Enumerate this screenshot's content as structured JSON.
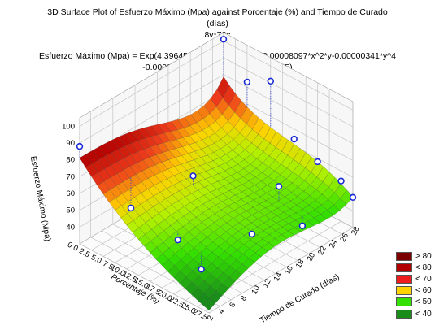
{
  "chart_data": {
    "type": "surface3d",
    "title_line1": "3D Surface Plot of Esfuerzo Máximo (Mpa) against Porcentaje (%) and Tiempo de Curado",
    "title_line2": "(días)",
    "subtitle": "8v*72c",
    "equation_line1": "Esfuerzo Máximo (Mpa) = Exp(4.39645023-0.03867087*x+0.00008097*x^2*y-0.00000341*y^4",
    "equation_line2": "-0.00000007*x^3*y^2+0.00000012*y^5)",
    "xlabel": "Porcentaje (%)",
    "ylabel": "Tiempo de Curado (días)",
    "zlabel": "Esfuerzo Máximo (Mpa)",
    "x_ticks": [
      "0.0",
      "2.5",
      "5.0",
      "7.5",
      "10.0",
      "12.5",
      "15.0",
      "17.5",
      "20.0",
      "22.5",
      "25.0",
      "27.5"
    ],
    "y_ticks": [
      "2",
      "4",
      "6",
      "8",
      "10",
      "12",
      "14",
      "16",
      "18",
      "20",
      "22",
      "24",
      "26",
      "28"
    ],
    "z_ticks": [
      "40",
      "50",
      "60",
      "70",
      "80",
      "90",
      "100"
    ],
    "xlim": [
      0,
      27.5
    ],
    "ylim": [
      2,
      28
    ],
    "zlim": [
      30,
      105
    ],
    "legend": [
      {
        "label": "> 80",
        "color": "#7a0000"
      },
      {
        "label": "< 80",
        "color": "#b30000"
      },
      {
        "label": "< 70",
        "color": "#ee1c1c"
      },
      {
        "label": "< 60",
        "color": "#ffd200"
      },
      {
        "label": "< 50",
        "color": "#33e000"
      },
      {
        "label": "< 40",
        "color": "#1a8c1a"
      }
    ],
    "points": [
      {
        "x": 0,
        "y": 2,
        "z": 88
      },
      {
        "x": 0,
        "y": 28,
        "z": 101
      },
      {
        "x": 5,
        "y": 7,
        "z": 49
      },
      {
        "x": 5,
        "y": 28,
        "z": 83
      },
      {
        "x": 10,
        "y": 28,
        "z": 91
      },
      {
        "x": 10,
        "y": 14,
        "z": 62
      },
      {
        "x": 15,
        "y": 7,
        "z": 45
      },
      {
        "x": 15,
        "y": 28,
        "z": 64
      },
      {
        "x": 20,
        "y": 7,
        "z": 35
      },
      {
        "x": 20,
        "y": 21,
        "z": 57
      },
      {
        "x": 20,
        "y": 28,
        "z": 58
      },
      {
        "x": 22.5,
        "y": 14,
        "z": 46
      },
      {
        "x": 25,
        "y": 21,
        "z": 41
      },
      {
        "x": 25,
        "y": 28,
        "z": 54
      },
      {
        "x": 27.5,
        "y": 28,
        "z": 48
      }
    ]
  }
}
